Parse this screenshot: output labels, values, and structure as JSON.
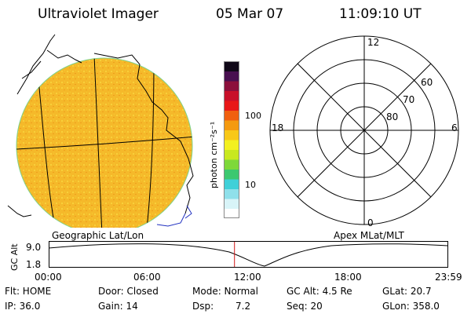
{
  "header": {
    "instrument": "Ultraviolet Imager",
    "date": "05 Mar 07",
    "time": "11:09:10 UT"
  },
  "colorbar": {
    "unit_label": "photon cm⁻²s⁻¹",
    "ticks": [
      "100",
      "10"
    ],
    "colors": [
      "#ffffff",
      "#d8f4f8",
      "#8fe0ea",
      "#40d0d8",
      "#3cc870",
      "#7ed83a",
      "#c8e820",
      "#f3f020",
      "#f8c818",
      "#f49a10",
      "#f06010",
      "#e81818",
      "#c8102a",
      "#8c103c",
      "#481050",
      "#100818"
    ]
  },
  "geo_panel": {
    "label": "Geographic Lat/Lon",
    "disk_color": "#f5b92a"
  },
  "polar_panel": {
    "label": "Apex MLat/MLT",
    "mlt_labels": {
      "top": "12",
      "left": "18",
      "right": "6",
      "bottom": "0"
    },
    "lat_labels": [
      "60",
      "70",
      "80"
    ]
  },
  "timeline": {
    "ylabel": "GC Alt",
    "ytick_top": "9.0",
    "ytick_bottom": "1.8",
    "xticks": [
      "00:00",
      "06:00",
      "12:00",
      "18:00",
      "23:59"
    ],
    "marker_time": "11:09",
    "marker_color": "#d01818"
  },
  "status": {
    "flt": "Flt: HOME",
    "ip": "IP: 36.0",
    "door": "Door: Closed",
    "gain": "Gain: 14",
    "mode": "Mode: Normal",
    "dsp_label": "Dsp:",
    "dsp_value": "7.2",
    "gcalt": "GC Alt: 4.5 Re",
    "seq": "Seq: 20",
    "glat": "GLat: 20.7",
    "glon": "GLon: 358.0"
  }
}
